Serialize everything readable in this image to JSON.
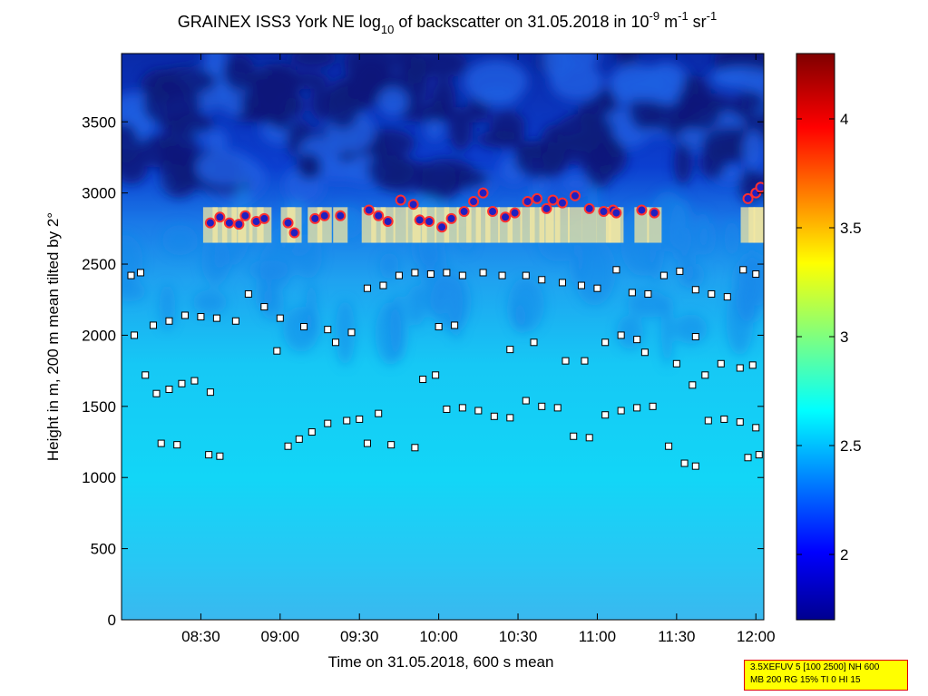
{
  "chart_data": {
    "type": "heatmap",
    "title_parts": {
      "before_log": "GRAINEX ISS3 York NE log",
      "log_subscript": "10",
      "middle": " of backscatter on 31.05.2018 in 10",
      "exp1": "-9",
      "m_unit": " m",
      "exp2": "-1",
      "sr_unit": " sr",
      "exp3": "-1"
    },
    "xlabel": "Time on 31.05.2018, 600 s mean",
    "ylabel": "Height in m, 200 m mean tilted by 2°",
    "xlim_hours": [
      8.0,
      12.05
    ],
    "ylim": [
      0,
      3980
    ],
    "x_ticks": [
      {
        "label": "08:30",
        "hour": 8.5
      },
      {
        "label": "09:00",
        "hour": 9.0
      },
      {
        "label": "09:30",
        "hour": 9.5
      },
      {
        "label": "10:00",
        "hour": 10.0
      },
      {
        "label": "10:30",
        "hour": 10.5
      },
      {
        "label": "11:00",
        "hour": 11.0
      },
      {
        "label": "11:30",
        "hour": 11.5
      },
      {
        "label": "12:00",
        "hour": 12.0
      }
    ],
    "y_ticks": [
      0,
      500,
      1000,
      1500,
      2000,
      2500,
      3000,
      3500
    ],
    "colorbar": {
      "range": [
        1.7,
        4.3
      ],
      "ticks": [
        2,
        2.5,
        3,
        3.5,
        4
      ],
      "colormap": "jet"
    },
    "cloud_base_height_m": 2800,
    "marker_layers": [
      {
        "name": "layer-a",
        "points": [
          [
            8.06,
            2420
          ],
          [
            8.12,
            2440
          ],
          [
            8.2,
            2070
          ],
          [
            8.3,
            2100
          ],
          [
            8.4,
            2140
          ],
          [
            8.5,
            2130
          ],
          [
            8.6,
            2120
          ],
          [
            8.72,
            2100
          ],
          [
            8.8,
            2290
          ],
          [
            8.9,
            2200
          ],
          [
            9.0,
            2120
          ],
          [
            9.15,
            2060
          ],
          [
            9.3,
            2040
          ],
          [
            9.45,
            2020
          ],
          [
            9.55,
            2330
          ],
          [
            9.65,
            2350
          ],
          [
            9.75,
            2420
          ],
          [
            9.85,
            2440
          ],
          [
            9.95,
            2430
          ],
          [
            10.05,
            2440
          ],
          [
            10.15,
            2420
          ],
          [
            10.28,
            2440
          ],
          [
            10.4,
            2420
          ],
          [
            10.55,
            2420
          ],
          [
            10.65,
            2390
          ],
          [
            10.78,
            2370
          ],
          [
            10.9,
            2350
          ],
          [
            11.0,
            2330
          ],
          [
            11.12,
            2460
          ],
          [
            11.22,
            2300
          ],
          [
            11.32,
            2290
          ],
          [
            11.42,
            2420
          ],
          [
            11.52,
            2450
          ],
          [
            11.62,
            2320
          ],
          [
            11.72,
            2290
          ],
          [
            11.82,
            2270
          ],
          [
            11.92,
            2460
          ],
          [
            12.0,
            2430
          ]
        ]
      },
      {
        "name": "layer-b",
        "points": [
          [
            8.22,
            1590
          ],
          [
            8.3,
            1620
          ],
          [
            8.38,
            1660
          ],
          [
            8.46,
            1680
          ],
          [
            8.56,
            1600
          ],
          [
            9.05,
            1220
          ],
          [
            9.12,
            1270
          ],
          [
            9.2,
            1320
          ],
          [
            9.3,
            1380
          ],
          [
            9.42,
            1400
          ],
          [
            9.5,
            1410
          ],
          [
            9.62,
            1450
          ],
          [
            9.9,
            1690
          ],
          [
            9.98,
            1720
          ],
          [
            10.05,
            1480
          ],
          [
            10.15,
            1490
          ],
          [
            10.25,
            1470
          ],
          [
            10.35,
            1430
          ],
          [
            10.45,
            1420
          ],
          [
            10.55,
            1540
          ],
          [
            10.65,
            1500
          ],
          [
            10.75,
            1490
          ],
          [
            10.85,
            1290
          ],
          [
            10.95,
            1280
          ],
          [
            11.05,
            1440
          ],
          [
            11.15,
            1470
          ],
          [
            11.25,
            1490
          ],
          [
            11.35,
            1500
          ],
          [
            11.45,
            1220
          ],
          [
            11.55,
            1100
          ],
          [
            11.62,
            1080
          ],
          [
            11.7,
            1400
          ],
          [
            11.8,
            1410
          ],
          [
            11.9,
            1390
          ],
          [
            12.0,
            1350
          ]
        ]
      },
      {
        "name": "layer-c",
        "points": [
          [
            8.08,
            2000
          ],
          [
            8.15,
            1720
          ],
          [
            8.25,
            1240
          ],
          [
            8.35,
            1230
          ],
          [
            8.55,
            1160
          ],
          [
            8.62,
            1150
          ],
          [
            8.98,
            1890
          ],
          [
            9.35,
            1950
          ],
          [
            9.55,
            1240
          ],
          [
            9.7,
            1230
          ],
          [
            9.85,
            1210
          ],
          [
            10.0,
            2060
          ],
          [
            10.1,
            2070
          ],
          [
            10.6,
            1950
          ],
          [
            10.8,
            1820
          ],
          [
            10.92,
            1820
          ],
          [
            11.05,
            1950
          ],
          [
            11.15,
            2000
          ],
          [
            11.3,
            1880
          ],
          [
            11.5,
            1800
          ],
          [
            11.6,
            1650
          ],
          [
            11.68,
            1720
          ],
          [
            11.78,
            1800
          ],
          [
            11.9,
            1770
          ],
          [
            11.98,
            1790
          ],
          [
            12.02,
            1160
          ],
          [
            11.95,
            1140
          ],
          [
            10.45,
            1900
          ],
          [
            11.25,
            1970
          ],
          [
            11.62,
            1990
          ]
        ]
      }
    ],
    "cloud_points": [
      [
        8.56,
        2790
      ],
      [
        8.62,
        2830
      ],
      [
        8.68,
        2790
      ],
      [
        8.74,
        2780
      ],
      [
        8.78,
        2840
      ],
      [
        8.85,
        2800
      ],
      [
        8.9,
        2820
      ],
      [
        9.05,
        2790
      ],
      [
        9.09,
        2720
      ],
      [
        9.22,
        2820
      ],
      [
        9.28,
        2840
      ],
      [
        9.38,
        2840
      ],
      [
        9.56,
        2880
      ],
      [
        9.62,
        2840
      ],
      [
        9.68,
        2800
      ],
      [
        9.76,
        2950
      ],
      [
        9.84,
        2920
      ],
      [
        9.88,
        2810
      ],
      [
        9.94,
        2800
      ],
      [
        10.02,
        2760
      ],
      [
        10.08,
        2820
      ],
      [
        10.16,
        2870
      ],
      [
        10.22,
        2940
      ],
      [
        10.28,
        3000
      ],
      [
        10.34,
        2870
      ],
      [
        10.42,
        2830
      ],
      [
        10.48,
        2860
      ],
      [
        10.56,
        2940
      ],
      [
        10.62,
        2960
      ],
      [
        10.68,
        2890
      ],
      [
        10.72,
        2950
      ],
      [
        10.78,
        2930
      ],
      [
        10.86,
        2980
      ],
      [
        10.95,
        2890
      ],
      [
        11.04,
        2870
      ],
      [
        11.1,
        2880
      ],
      [
        11.12,
        2860
      ],
      [
        11.28,
        2880
      ],
      [
        11.36,
        2860
      ],
      [
        11.95,
        2960
      ],
      [
        12.0,
        3000
      ],
      [
        12.03,
        3040
      ]
    ],
    "cloud_band_color": "#f5e8a0",
    "marker_color": "#ffffff",
    "marker_edge_color": "#000000",
    "cloud_marker_fill": "#2020c0",
    "cloud_marker_edge": "#ff3030"
  },
  "info_box": {
    "line1": "3.5XEFUV 5 [100 2500] NH 600",
    "line2": "MB 200 RG 15% TI 0 HI 15",
    "border_color": "#e00000",
    "background_color": "#ffff00"
  }
}
